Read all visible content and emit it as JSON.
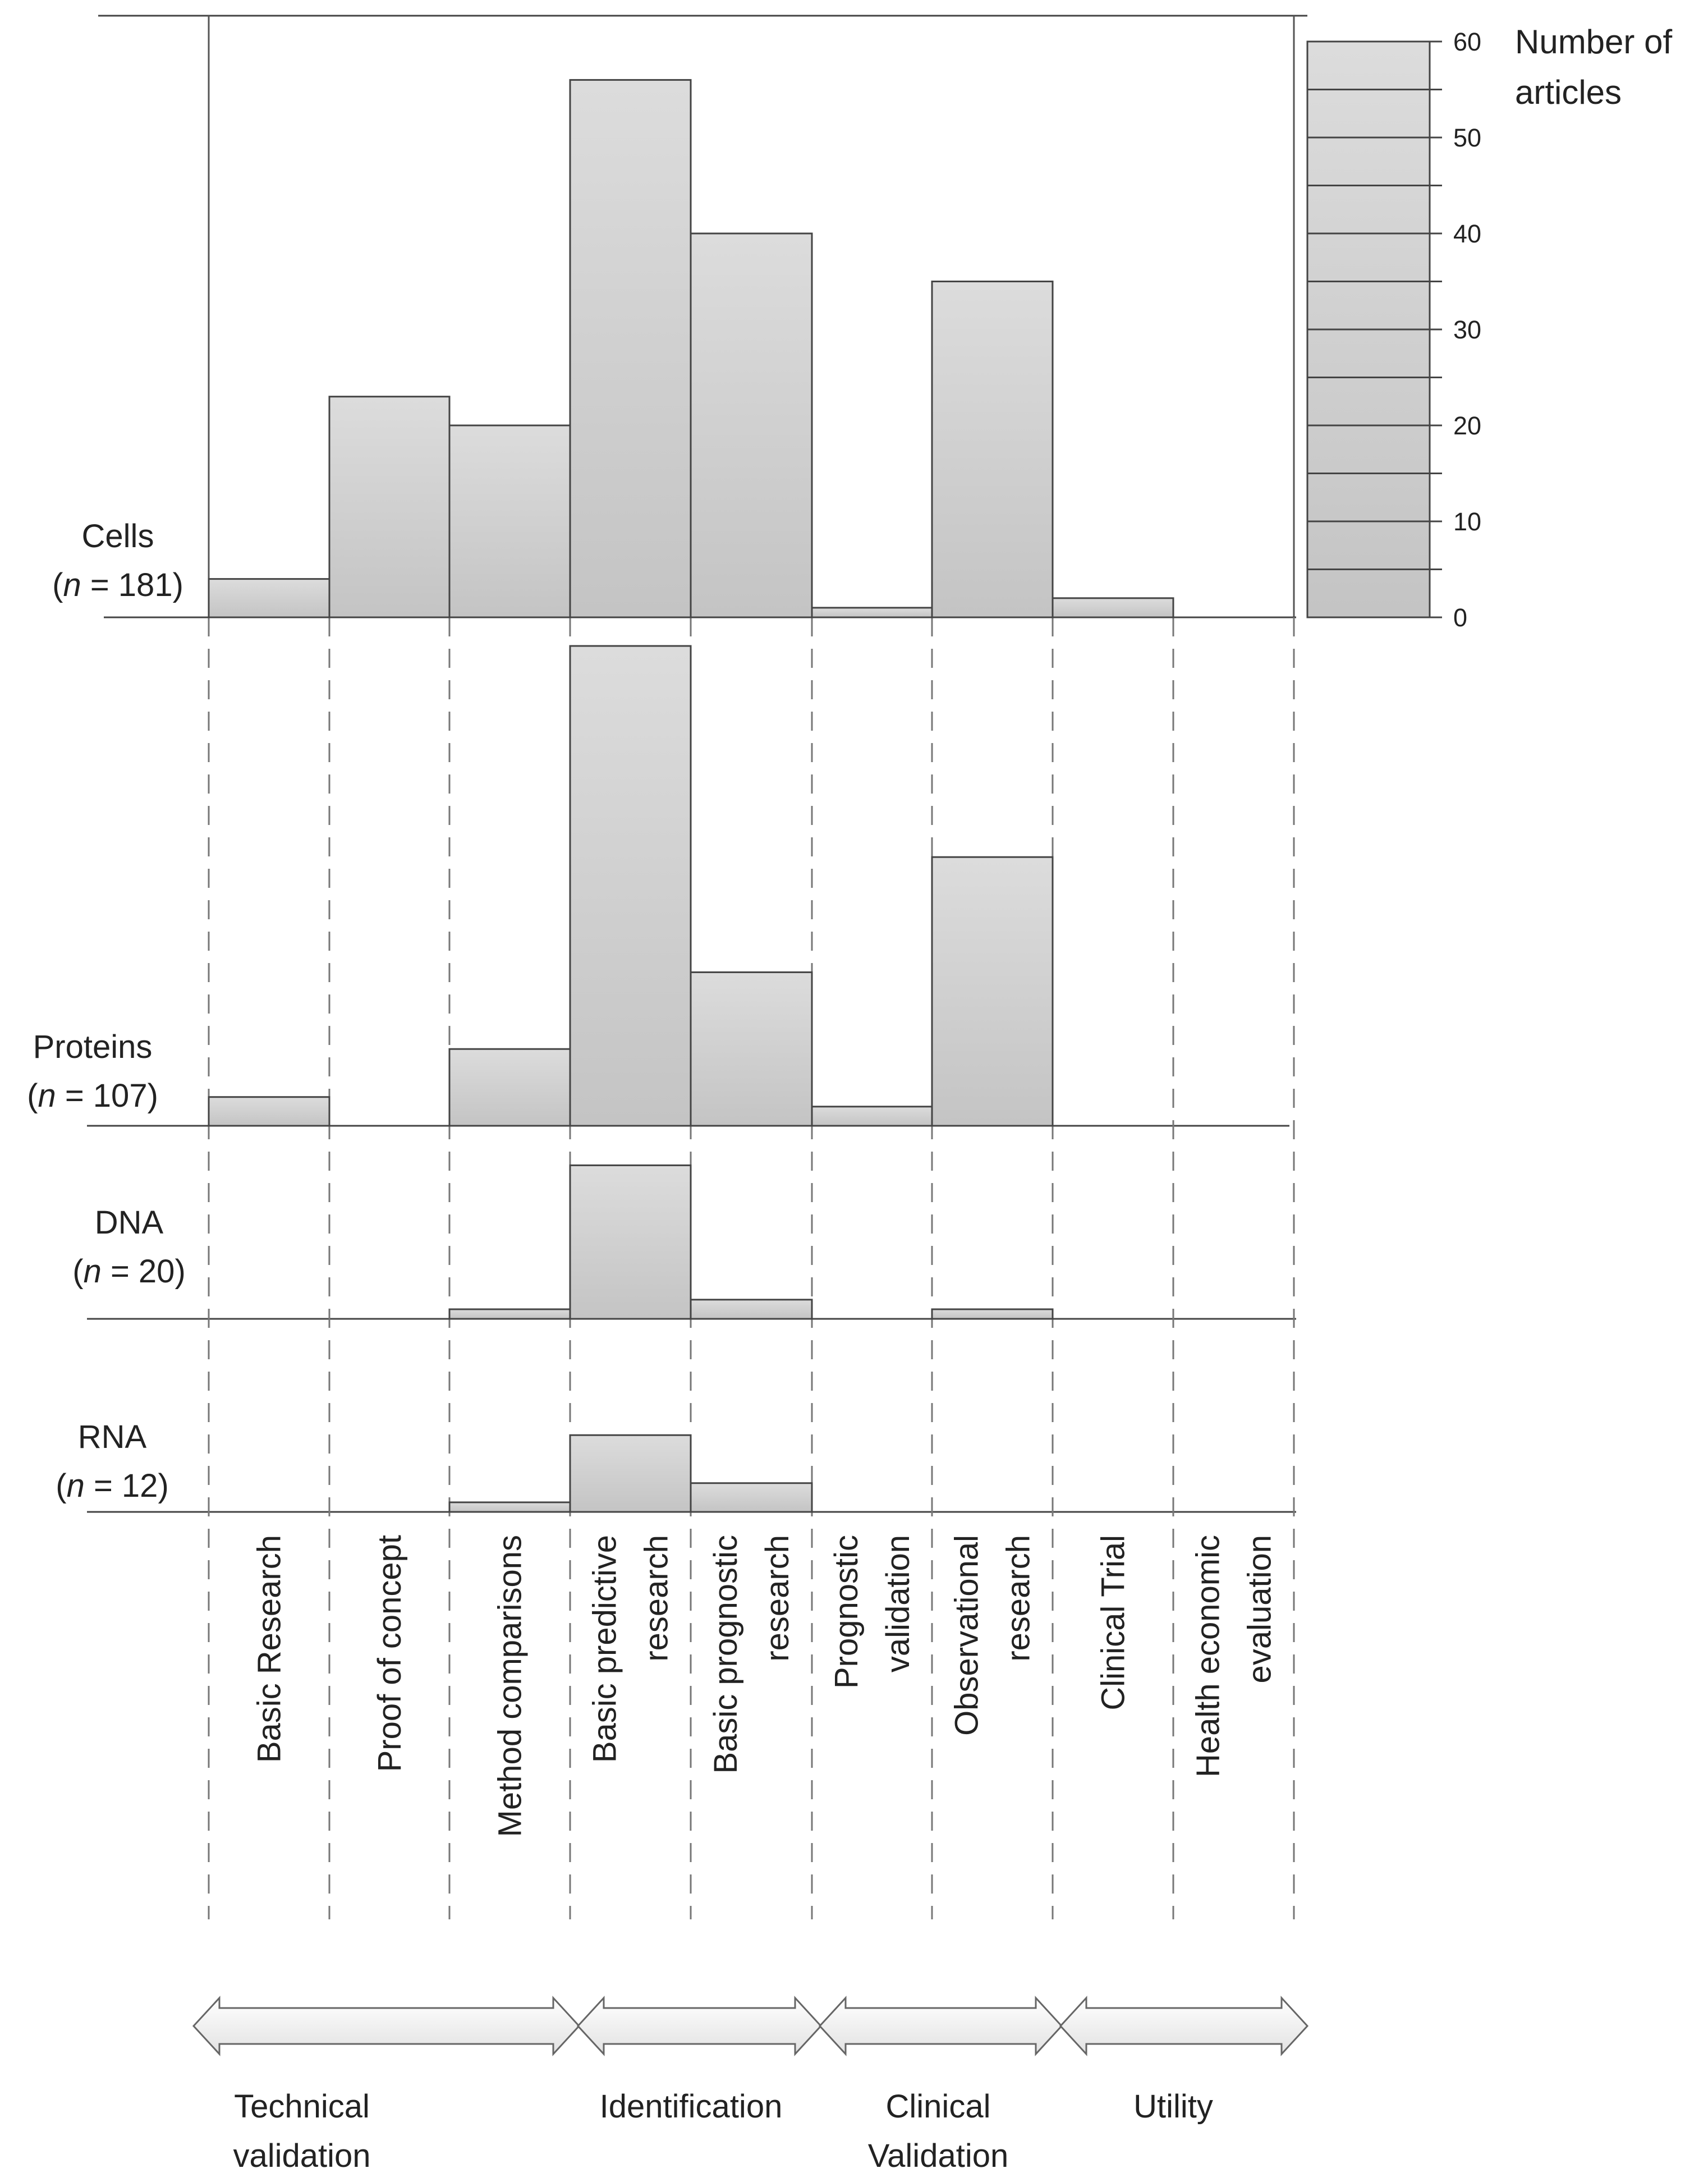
{
  "chart_data": {
    "type": "bar",
    "y_axis": {
      "title_lines": [
        "Number of",
        "articles"
      ],
      "ticks": [
        0,
        10,
        20,
        30,
        40,
        50,
        60
      ],
      "ylim": [
        0,
        60
      ],
      "segment_step": 5
    },
    "categories": [
      {
        "key": "basic_research",
        "lines": [
          "Basic Research"
        ]
      },
      {
        "key": "proof_of_concept",
        "lines": [
          "Proof of concept"
        ]
      },
      {
        "key": "method_comparisons",
        "lines": [
          "Method comparisons"
        ]
      },
      {
        "key": "basic_predictive_research",
        "lines": [
          "Basic predictive",
          "research"
        ]
      },
      {
        "key": "basic_prognostic_research",
        "lines": [
          "Basic prognostic",
          "research"
        ]
      },
      {
        "key": "prognostic_validation",
        "lines": [
          "Prognostic",
          "validation"
        ]
      },
      {
        "key": "observational_research",
        "lines": [
          "Observational",
          "research"
        ]
      },
      {
        "key": "clinical_trial",
        "lines": [
          "Clinical Trial"
        ]
      },
      {
        "key": "health_economic_evaluation",
        "lines": [
          "Health economic",
          "evaluation"
        ]
      }
    ],
    "series": [
      {
        "name": "Cells",
        "n_text": "n",
        "n_value": "= 181",
        "values": [
          4,
          23,
          20,
          56,
          40,
          1,
          35,
          2,
          0
        ]
      },
      {
        "name": "Proteins",
        "n_text": "n",
        "n_value": "= 107",
        "values": [
          3,
          0,
          8,
          50,
          16,
          2,
          28,
          0,
          0
        ]
      },
      {
        "name": "DNA",
        "n_text": "n",
        "n_value": "= 20",
        "values": [
          0,
          0,
          1,
          16,
          2,
          0,
          1,
          0,
          0
        ]
      },
      {
        "name": "RNA",
        "n_text": "n",
        "n_value": "= 12",
        "values": [
          0,
          0,
          1,
          8,
          3,
          0,
          0,
          0,
          0
        ]
      }
    ],
    "phases": [
      {
        "lines": [
          "Technical",
          "validation"
        ],
        "start": 0,
        "end": 3
      },
      {
        "lines": [
          "Identification"
        ],
        "start": 3,
        "end": 5
      },
      {
        "lines": [
          "Clinical",
          "Validation"
        ],
        "start": 5,
        "end": 7
      },
      {
        "lines": [
          "Utility"
        ],
        "start": 7,
        "end": 9
      }
    ]
  }
}
